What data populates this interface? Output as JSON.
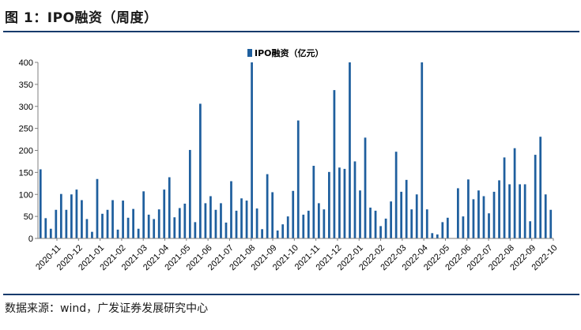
{
  "figure": {
    "title": "图 1：IPO融资（周度）",
    "source": "数据来源：wind，广发证券发展研究中心"
  },
  "colors": {
    "bar": "#1f5f9e",
    "axis": "#7f7f7f",
    "rule": "#173b6c"
  },
  "chart_data": {
    "type": "bar",
    "title": "",
    "xlabel": "",
    "ylabel": "",
    "ylim": [
      0,
      400
    ],
    "yticks": [
      0,
      50,
      100,
      150,
      200,
      250,
      300,
      350,
      400
    ],
    "grid": false,
    "legend_position": "top-center",
    "x_tick_labels": [
      "2020-11",
      "2020-12",
      "2021-01",
      "2021-02",
      "2021-03",
      "2021-04",
      "2021-05",
      "2021-06",
      "2021-07",
      "2021-08",
      "2021-09",
      "2021-10",
      "2021-11",
      "2021-12",
      "2022-01",
      "2022-02",
      "2022-03",
      "2022-04",
      "2022-05",
      "2022-06",
      "2022-07",
      "2022-08",
      "2022-09",
      "2022-10"
    ],
    "series": [
      {
        "name": "IPO融资（亿元）",
        "values": [
          157,
          46,
          22,
          65,
          101,
          65,
          100,
          111,
          87,
          44,
          15,
          135,
          56,
          65,
          87,
          20,
          86,
          47,
          67,
          22,
          107,
          54,
          44,
          66,
          111,
          139,
          48,
          69,
          79,
          201,
          37,
          306,
          80,
          96,
          65,
          80,
          36,
          130,
          63,
          91,
          86,
          400,
          68,
          21,
          146,
          105,
          18,
          32,
          50,
          108,
          268,
          54,
          63,
          165,
          80,
          66,
          151,
          337,
          161,
          158,
          400,
          175,
          109,
          229,
          70,
          63,
          28,
          45,
          84,
          197,
          106,
          133,
          66,
          100,
          400,
          66,
          12,
          9,
          37,
          47,
          0,
          114,
          50,
          134,
          89,
          109,
          96,
          57,
          106,
          132,
          184,
          123,
          205,
          123,
          123,
          39,
          190,
          231,
          100,
          65
        ]
      }
    ]
  }
}
